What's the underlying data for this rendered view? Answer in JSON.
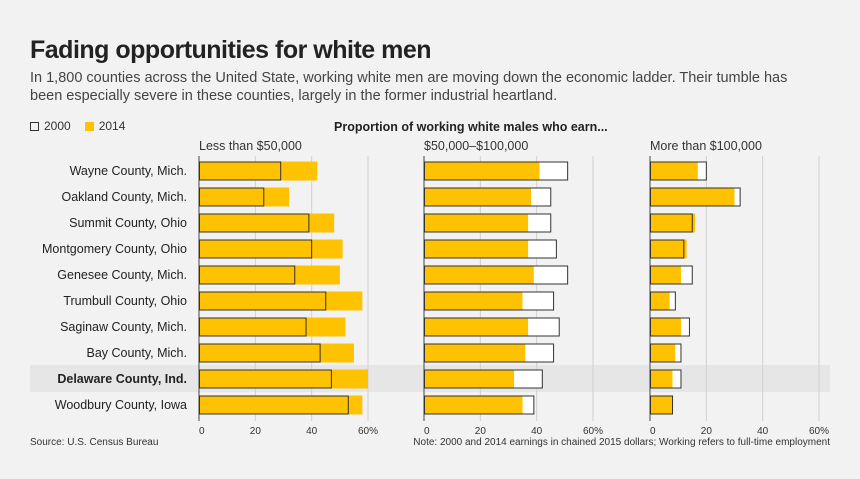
{
  "title": "Fading opportunities for white men",
  "subtitle": "In 1,800 counties across the United State, working white men are moving down the economic ladder. Their tumble has been especially severe in these counties, largely in the former industrial heartland.",
  "legend": {
    "year_2000": "2000",
    "year_2014": "2014"
  },
  "chart_heading": "Proportion of working white males who earn...",
  "source": "Source: U.S. Census Bureau",
  "note": "Note: 2000 and 2014 earnings in chained 2015 dollars; Working refers to full-time employment",
  "colors": {
    "fill_2014": "#FFC200",
    "outline_2000": "#333333",
    "highlight_row": "#e6e6e6"
  },
  "chart_data": {
    "type": "bar",
    "orientation": "horizontal",
    "categories": [
      "Wayne County, Mich.",
      "Oakland County, Mich.",
      "Summit County, Ohio",
      "Montgomery County, Ohio",
      "Genesee County, Mich.",
      "Trumbull County, Ohio",
      "Saginaw County, Mich.",
      "Bay County, Mich.",
      "Delaware County, Ind.",
      "Woodbury County, Iowa"
    ],
    "highlighted_category": "Delaware County, Ind.",
    "xlim": [
      0,
      60
    ],
    "xticks": [
      0,
      20,
      40,
      60
    ],
    "xtick_labels": [
      "0",
      "20",
      "40",
      "60%"
    ],
    "panels": [
      {
        "title": "Less than $50,000",
        "series": [
          {
            "name": "2000",
            "values": [
              29,
              23,
              39,
              40,
              34,
              45,
              38,
              43,
              47,
              53
            ]
          },
          {
            "name": "2014",
            "values": [
              42,
              32,
              48,
              51,
              50,
              58,
              52,
              55,
              60,
              58
            ]
          }
        ]
      },
      {
        "title": "$50,000–$100,000",
        "series": [
          {
            "name": "2000",
            "values": [
              51,
              45,
              45,
              47,
              51,
              46,
              48,
              46,
              42,
              39
            ]
          },
          {
            "name": "2014",
            "values": [
              41,
              38,
              37,
              37,
              39,
              35,
              37,
              36,
              32,
              35
            ]
          }
        ]
      },
      {
        "title": "More than $100,000",
        "series": [
          {
            "name": "2000",
            "values": [
              20,
              32,
              15,
              12,
              15,
              9,
              14,
              11,
              11,
              8
            ]
          },
          {
            "name": "2014",
            "values": [
              17,
              30,
              16,
              13,
              11,
              7,
              11,
              9,
              8,
              8
            ]
          }
        ]
      }
    ]
  }
}
